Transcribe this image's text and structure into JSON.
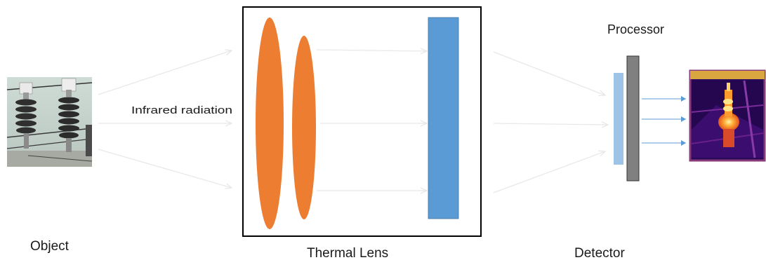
{
  "labels": {
    "object": "Object",
    "radiation": "Infrared radiation",
    "lens": "Thermal Lens",
    "detector": "Detector",
    "processor": "Processor"
  },
  "colors": {
    "lens_orange": "#ED7D31",
    "sensor_blue": "#5B9BD5",
    "detector_light_blue": "#9DC3E6",
    "processor_gray": "#808080",
    "arrow_light": "#E8E8E8",
    "arrow_blue": "#5B9BD5",
    "thermal_frame": "#8A3A7A"
  },
  "icons": {
    "object_photo": "insulator-photo",
    "thermal_output": "thermal-image"
  }
}
